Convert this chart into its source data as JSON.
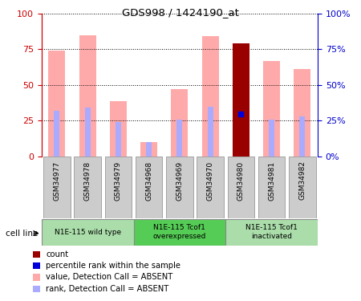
{
  "title": "GDS998 / 1424190_at",
  "samples": [
    "GSM34977",
    "GSM34978",
    "GSM34979",
    "GSM34968",
    "GSM34969",
    "GSM34970",
    "GSM34980",
    "GSM34981",
    "GSM34982"
  ],
  "value_bars": [
    74,
    85,
    39,
    10,
    47,
    84,
    79,
    67,
    61
  ],
  "rank_bars": [
    32,
    34,
    24,
    10,
    26,
    35,
    29,
    26,
    28
  ],
  "count_bar_idx": 6,
  "count_bar_val": 79,
  "rank_dot_val": 30,
  "groups": [
    {
      "label": "N1E-115 wild type",
      "start": 0,
      "end": 3,
      "color": "#aaddaa"
    },
    {
      "label": "N1E-115 Tcof1\noverexpressed",
      "start": 3,
      "end": 6,
      "color": "#55cc55"
    },
    {
      "label": "N1E-115 Tcof1\ninactivated",
      "start": 6,
      "end": 9,
      "color": "#aaddaa"
    }
  ],
  "ylim": [
    0,
    100
  ],
  "yticks": [
    0,
    25,
    50,
    75,
    100
  ],
  "pink_color": "#ffaaaa",
  "lavender_color": "#aaaaff",
  "dark_red_color": "#990000",
  "blue_dot_color": "#0000dd",
  "left_axis_color": "#cc0000",
  "right_axis_color": "#0000cc",
  "sample_box_color": "#cccccc",
  "grid_color": "black"
}
